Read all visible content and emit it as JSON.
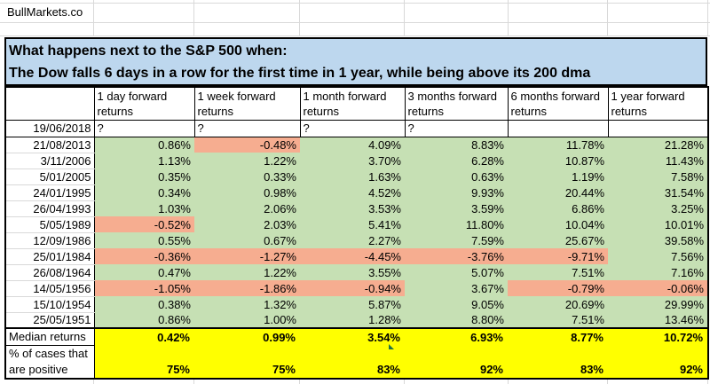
{
  "brand": "BullMarkets.co",
  "title": {
    "line1": "What happens next to the S&P 500 when:",
    "line2": "The Dow falls 6 days in a row for the first time in 1 year, while being above its 200 dma"
  },
  "table": {
    "columns": [
      "1 day forward returns",
      "1 week forward returns",
      "1 month forward returns",
      "3 months forward returns",
      "6 months forward returns",
      "1 year forward returns"
    ],
    "pending_row": {
      "date": "19/06/2018",
      "values": [
        "?",
        "?",
        "?",
        "?",
        "",
        ""
      ]
    },
    "rows": [
      {
        "date": "21/08/2013",
        "values": [
          "0.86%",
          "-0.48%",
          "4.09%",
          "8.83%",
          "11.78%",
          "21.28%"
        ]
      },
      {
        "date": "3/11/2006",
        "values": [
          "1.13%",
          "1.22%",
          "3.70%",
          "6.28%",
          "10.87%",
          "11.43%"
        ]
      },
      {
        "date": "5/01/2005",
        "values": [
          "0.35%",
          "0.33%",
          "1.63%",
          "0.63%",
          "1.19%",
          "7.58%"
        ]
      },
      {
        "date": "24/01/1995",
        "values": [
          "0.34%",
          "0.98%",
          "4.52%",
          "9.93%",
          "20.44%",
          "31.54%"
        ]
      },
      {
        "date": "26/04/1993",
        "values": [
          "1.03%",
          "2.06%",
          "3.53%",
          "3.59%",
          "6.86%",
          "3.25%"
        ]
      },
      {
        "date": "5/05/1989",
        "values": [
          "-0.52%",
          "2.03%",
          "5.41%",
          "11.80%",
          "10.04%",
          "10.01%"
        ]
      },
      {
        "date": "12/09/1986",
        "values": [
          "0.55%",
          "0.67%",
          "2.27%",
          "7.59%",
          "25.67%",
          "39.58%"
        ]
      },
      {
        "date": "25/01/1984",
        "values": [
          "-0.36%",
          "-1.27%",
          "-4.45%",
          "-3.76%",
          "-9.71%",
          "7.56%"
        ]
      },
      {
        "date": "26/08/1964",
        "values": [
          "0.47%",
          "1.22%",
          "3.55%",
          "5.07%",
          "7.51%",
          "7.16%"
        ]
      },
      {
        "date": "14/05/1956",
        "values": [
          "-1.05%",
          "-1.86%",
          "-0.94%",
          "3.67%",
          "-0.79%",
          "-0.06%"
        ]
      },
      {
        "date": "15/10/1954",
        "values": [
          "0.38%",
          "1.32%",
          "5.87%",
          "9.05%",
          "20.69%",
          "29.99%"
        ]
      },
      {
        "date": "25/05/1951",
        "values": [
          "0.86%",
          "1.00%",
          "1.28%",
          "8.80%",
          "7.51%",
          "13.46%"
        ]
      }
    ],
    "summary": {
      "median_label": "Median returns",
      "median_values": [
        "0.42%",
        "0.99%",
        "3.54%",
        "6.93%",
        "8.77%",
        "10.72%"
      ],
      "positive_label_lines": [
        "% of cases that",
        "are positive"
      ],
      "positive_values": [
        "75%",
        "75%",
        "83%",
        "92%",
        "83%",
        "92%"
      ]
    }
  },
  "icons": {
    "comment_marker": "green-triangle-marker"
  },
  "colors": {
    "title_bg": "#BDD7EE",
    "positive_cell": "#C6E0B4",
    "negative_cell": "#F6AD90",
    "summary_bg": "#FFFF00",
    "marker_green": "#217346",
    "gridline": "#D9D9D9"
  }
}
